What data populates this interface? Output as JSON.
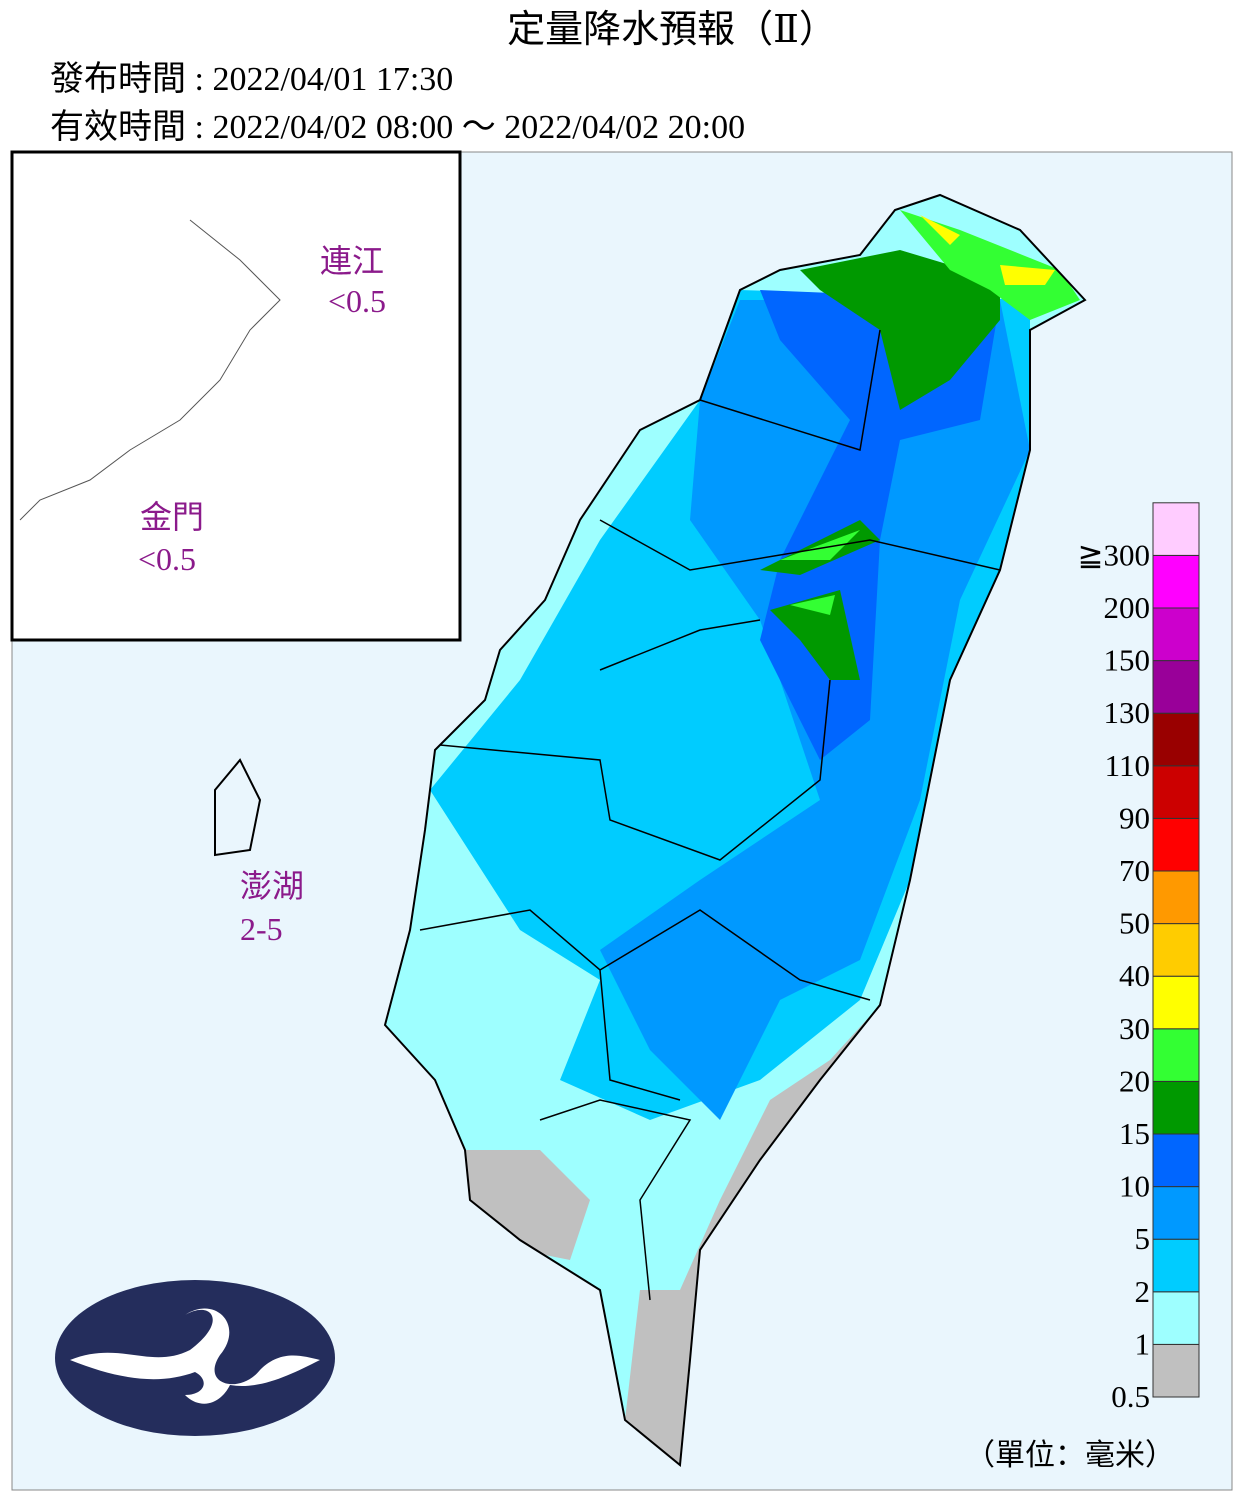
{
  "header": {
    "title": "定量降水預報（Ⅱ）",
    "issued": "發布時間 : 2022/04/01 17:30",
    "valid": "有效時間 : 2022/04/02 08:00 ～ 2022/04/02 20:00"
  },
  "islands": [
    {
      "name": "連江",
      "value": "<0.5"
    },
    {
      "name": "金門",
      "value": "<0.5"
    },
    {
      "name": "澎湖",
      "value": "2-5"
    }
  ],
  "legend": {
    "unit": "（單位：毫米）",
    "items": [
      {
        "label": "0.5",
        "color": "#c0c0c0"
      },
      {
        "label": "1",
        "color": "#9effff"
      },
      {
        "label": "2",
        "color": "#00ccff"
      },
      {
        "label": "5",
        "color": "#0099ff"
      },
      {
        "label": "10",
        "color": "#0066ff"
      },
      {
        "label": "15",
        "color": "#009900"
      },
      {
        "label": "20",
        "color": "#33ff33"
      },
      {
        "label": "30",
        "color": "#ffff00"
      },
      {
        "label": "40",
        "color": "#ffcc00"
      },
      {
        "label": "50",
        "color": "#ff9900"
      },
      {
        "label": "70",
        "color": "#ff0000"
      },
      {
        "label": "90",
        "color": "#cc0000"
      },
      {
        "label": "110",
        "color": "#990000"
      },
      {
        "label": "130",
        "color": "#990099"
      },
      {
        "label": "150",
        "color": "#cc00cc"
      },
      {
        "label": "200",
        "color": "#ff00ff"
      },
      {
        "label": "≧300",
        "color": "#ffccff"
      }
    ]
  }
}
